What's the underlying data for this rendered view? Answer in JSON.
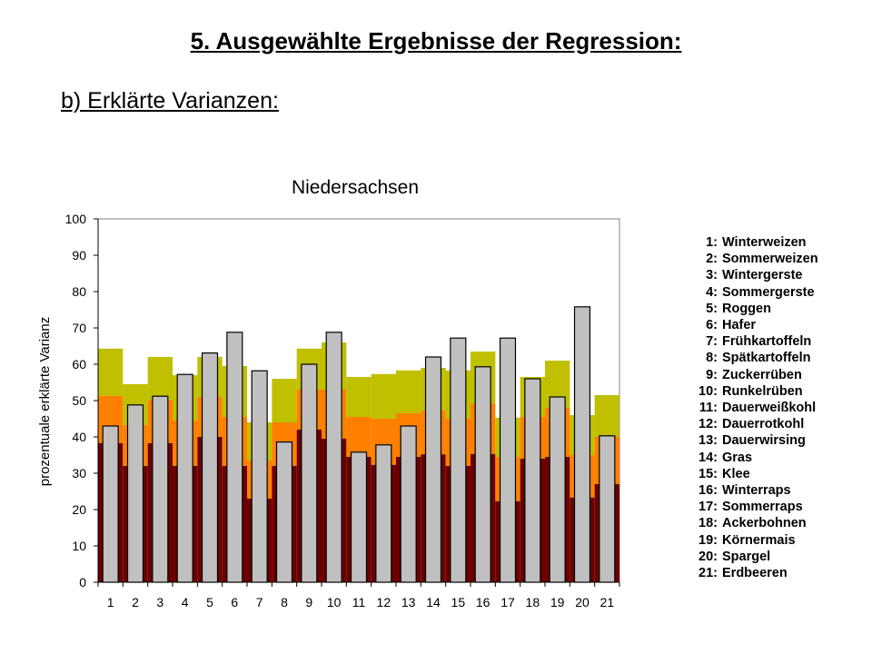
{
  "slide": {
    "title": "5. Ausgewählte Ergebnisse der Regression:",
    "subtitle": "b) Erklärte Varianzen:"
  },
  "chart_data": {
    "type": "bar",
    "title": "Niedersachsen",
    "xlabel": "",
    "ylabel": "prozentuale erklärte Varianz",
    "ylim": [
      0,
      100
    ],
    "yticks": [
      0,
      10,
      20,
      30,
      40,
      50,
      60,
      70,
      80,
      90,
      100
    ],
    "grid": false,
    "legend_position": "right",
    "categories": [
      "1",
      "2",
      "3",
      "4",
      "5",
      "6",
      "7",
      "8",
      "9",
      "10",
      "11",
      "12",
      "13",
      "14",
      "15",
      "16",
      "17",
      "18",
      "19",
      "20",
      "21"
    ],
    "stacked_series": [
      {
        "name": "",
        "color": "#6b0000",
        "values": [
          38.3,
          32,
          38.3,
          32,
          40,
          32,
          23,
          32,
          42,
          39.5,
          34.5,
          32.3,
          34.5,
          35.2,
          32,
          35.3,
          22.3,
          34,
          34.5,
          23.3,
          27
        ]
      },
      {
        "name": "",
        "color": "#ff8000",
        "values": [
          51.3,
          43.3,
          50.2,
          44.5,
          51,
          45.5,
          33.5,
          44,
          53,
          53,
          45.5,
          45,
          46.5,
          47.3,
          45,
          49.3,
          34.5,
          45.5,
          48,
          35,
          40
        ]
      },
      {
        "name": "",
        "color": "#c0c000",
        "values": [
          64.3,
          54.5,
          62,
          57,
          62,
          59.5,
          44,
          56,
          64.3,
          66,
          56.5,
          57.3,
          58.3,
          59,
          58.3,
          63.5,
          45.3,
          56.5,
          61,
          46,
          51.5
        ]
      }
    ],
    "overlay_series": {
      "name": "",
      "color": "#c0c0c0",
      "values": [
        43,
        48.8,
        51.2,
        57.2,
        63.1,
        68.8,
        58.2,
        38.6,
        60,
        68.8,
        35.8,
        37.8,
        43,
        62,
        67.2,
        59.3,
        67.2,
        56,
        51,
        75.8,
        40.3
      ]
    }
  },
  "legend": {
    "items": [
      {
        "num": "1:",
        "name": "Winterweizen"
      },
      {
        "num": "2:",
        "name": "Sommerweizen"
      },
      {
        "num": "3:",
        "name": "Wintergerste"
      },
      {
        "num": "4:",
        "name": "Sommergerste"
      },
      {
        "num": "5:",
        "name": "Roggen"
      },
      {
        "num": "6:",
        "name": "Hafer"
      },
      {
        "num": "7:",
        "name": "Frühkartoffeln"
      },
      {
        "num": "8:",
        "name": "Spätkartoffeln"
      },
      {
        "num": "9:",
        "name": "Zuckerrüben"
      },
      {
        "num": "10:",
        "name": "Runkelrüben"
      },
      {
        "num": "11:",
        "name": "Dauerweißkohl"
      },
      {
        "num": "12:",
        "name": "Dauerrotkohl"
      },
      {
        "num": "13:",
        "name": "Dauerwirsing"
      },
      {
        "num": "14:",
        "name": "Gras"
      },
      {
        "num": "15:",
        "name": "Klee"
      },
      {
        "num": "16:",
        "name": "Winterraps"
      },
      {
        "num": "17:",
        "name": "Sommerraps"
      },
      {
        "num": "18:",
        "name": "Ackerbohnen"
      },
      {
        "num": "19:",
        "name": "Körnermais"
      },
      {
        "num": "20:",
        "name": "Spargel"
      },
      {
        "num": "21:",
        "name": "Erdbeeren"
      }
    ]
  }
}
